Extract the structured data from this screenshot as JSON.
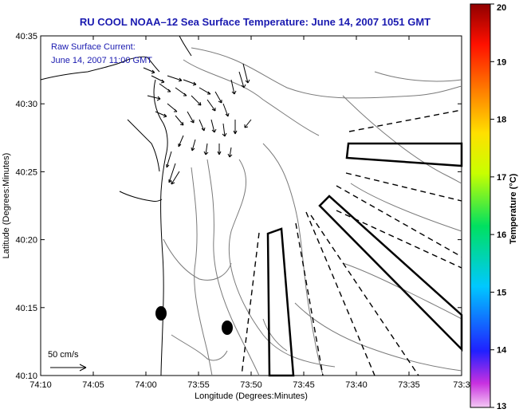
{
  "title": "RU COOL   NOAA–12  Sea Surface Temperature:  June 14, 2007 1051 GMT",
  "current_note": {
    "line1": "Raw Surface Current:",
    "line2": "June 14, 2007 11:00 GMT"
  },
  "scale_label": "50 cm/s",
  "axes": {
    "xlabel": "Longitude (Degrees:Minutes)",
    "ylabel": "Latitude (Degrees:Minutes)",
    "xticks": [
      "74:10",
      "74:05",
      "74:00",
      "73:55",
      "73:50",
      "73:45",
      "73:40",
      "73:35",
      "73:3"
    ],
    "yticks": [
      "40:35",
      "40:30",
      "40:25",
      "40:20",
      "40:15",
      "40:10"
    ]
  },
  "colorbar": {
    "label": "Temperature (°C)",
    "ticks": [
      "20",
      "19",
      "18",
      "17",
      "16",
      "15",
      "14",
      "13"
    ],
    "min": 13,
    "max": 20
  },
  "colors": {
    "title": "#1a1ab0",
    "axes": "#000000",
    "contours": "#7a7a7a"
  }
}
